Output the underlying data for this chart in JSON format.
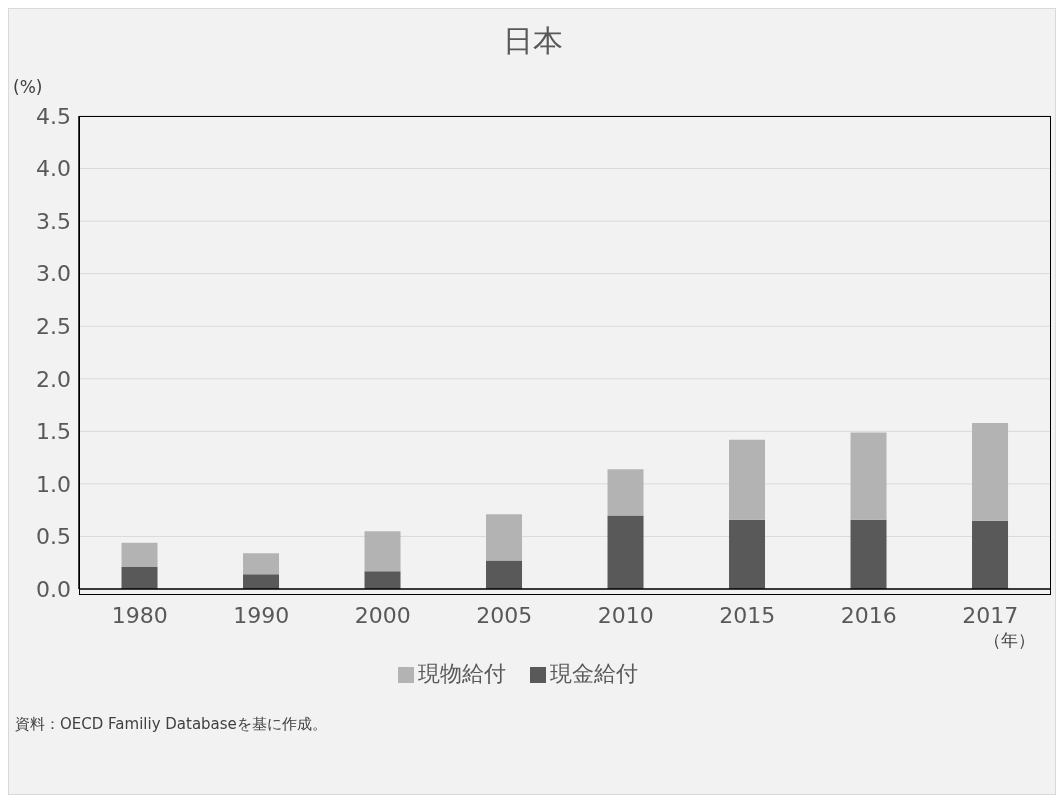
{
  "chart_data": {
    "type": "bar",
    "title": "日本",
    "ylabel": "(%)",
    "xlabel": "（年）",
    "stacked": true,
    "categories": [
      "1980",
      "1990",
      "2000",
      "2005",
      "2010",
      "2015",
      "2016",
      "2017"
    ],
    "series": [
      {
        "name": "現金給付",
        "color": "#595959",
        "values": [
          0.21,
          0.14,
          0.17,
          0.27,
          0.7,
          0.66,
          0.66,
          0.65
        ]
      },
      {
        "name": "現物給付",
        "color": "#b3b3b3",
        "values": [
          0.23,
          0.2,
          0.38,
          0.44,
          0.44,
          0.76,
          0.83,
          0.93
        ]
      }
    ],
    "ylim": [
      0,
      4.5
    ],
    "yticks": [
      {
        "value": 0,
        "label": "0.0"
      },
      {
        "value": 0.5,
        "label": "0.5"
      },
      {
        "value": 1,
        "label": "1.0"
      },
      {
        "value": 1.5,
        "label": "1.5"
      },
      {
        "value": 2,
        "label": "2.0"
      },
      {
        "value": 2.5,
        "label": "2.5"
      },
      {
        "value": 3,
        "label": "3.0"
      },
      {
        "value": 3.5,
        "label": "3.5"
      },
      {
        "value": 4,
        "label": "4.0"
      },
      {
        "value": 4.5,
        "label": "4.5"
      }
    ],
    "grid": "y",
    "legend": "bottom",
    "annotations": [
      "資料：OECD Familiy Databaseを基に作成。"
    ]
  }
}
